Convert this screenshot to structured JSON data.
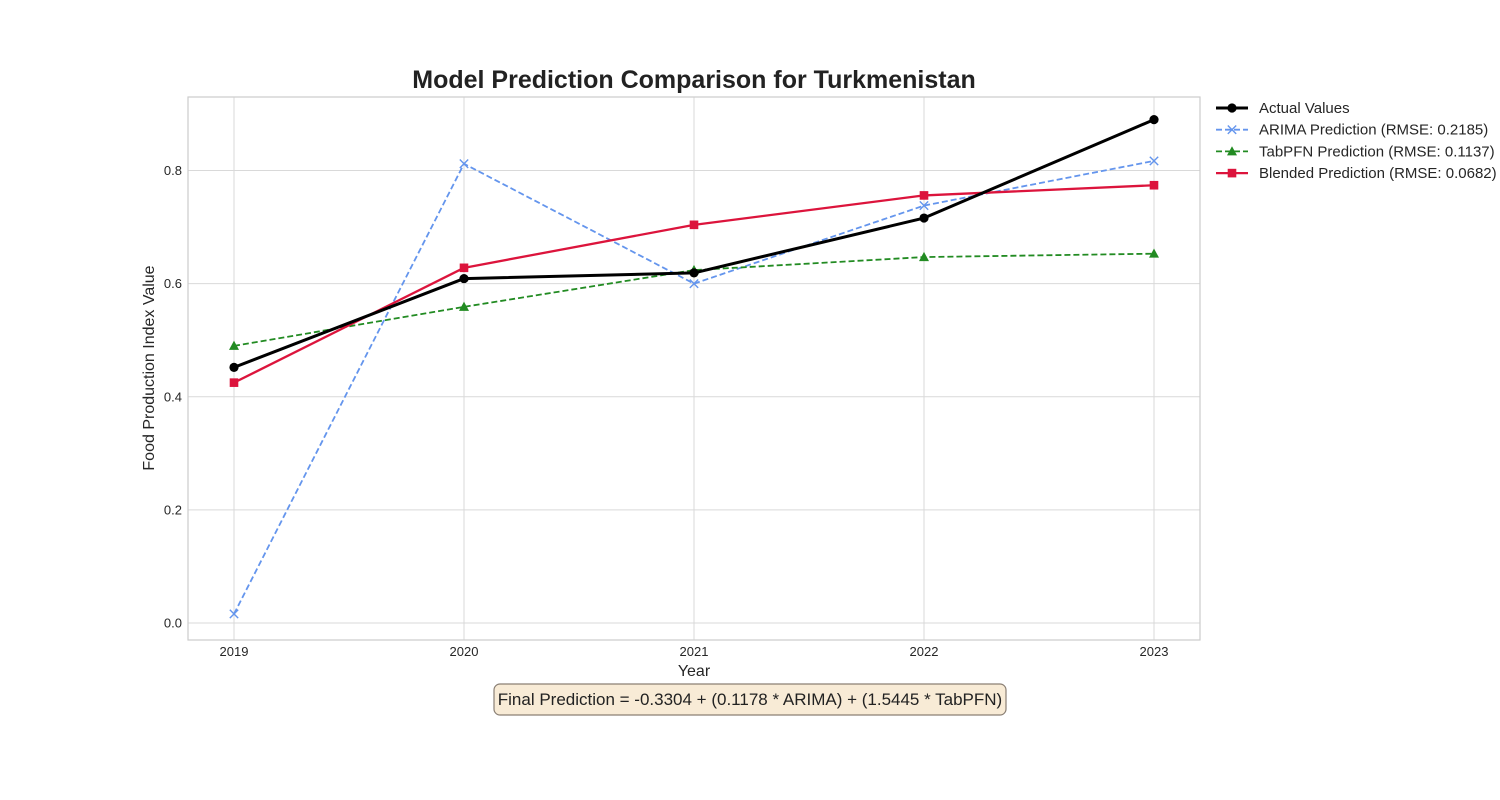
{
  "chart_data": {
    "type": "line",
    "title": "Model Prediction Comparison for Turkmenistan",
    "xlabel": "Year",
    "ylabel": "Food Production Index Value",
    "x": [
      "2019",
      "2020",
      "2021",
      "2022",
      "2023"
    ],
    "ylim": [
      -0.03,
      0.93
    ],
    "yticks": [
      "0.0",
      "0.2",
      "0.4",
      "0.6",
      "0.8"
    ],
    "grid": true,
    "legend_position": "outside right",
    "series": [
      {
        "name": "Actual Values",
        "values": [
          0.452,
          0.609,
          0.619,
          0.716,
          0.89
        ],
        "color": "#000000",
        "marker": "circle",
        "style": "solid"
      },
      {
        "name": "ARIMA Prediction (RMSE: 0.2185)",
        "values": [
          0.016,
          0.812,
          0.6,
          0.738,
          0.817
        ],
        "color": "#6495ed",
        "marker": "x",
        "style": "dashed"
      },
      {
        "name": "TabPFN Prediction (RMSE: 0.1137)",
        "values": [
          0.49,
          0.559,
          0.624,
          0.647,
          0.653
        ],
        "color": "#228b22",
        "marker": "triangle",
        "style": "dashed"
      },
      {
        "name": "Blended Prediction (RMSE: 0.0682)",
        "values": [
          0.425,
          0.628,
          0.704,
          0.756,
          0.774
        ],
        "color": "#dc143c",
        "marker": "square",
        "style": "solid"
      }
    ],
    "annotation": "Final Prediction = -0.3304 + (0.1178 * ARIMA) + (1.5445 * TabPFN)"
  }
}
